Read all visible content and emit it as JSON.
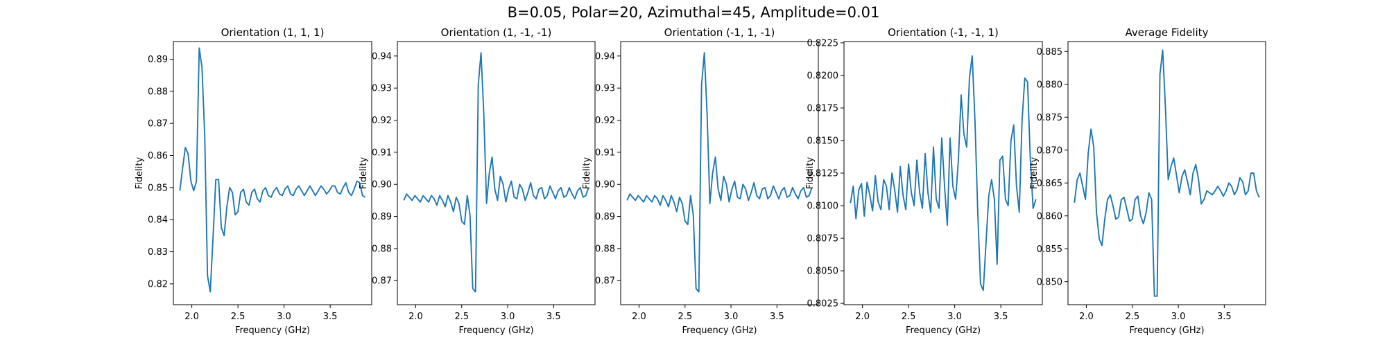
{
  "figure": {
    "suptitle": "B=0.05, Polar=20, Azimuthal=45, Amplitude=0.01"
  },
  "colors": {
    "line": "#1f77b4"
  },
  "chart_data": [
    {
      "type": "line",
      "title": "Orientation (1, 1, 1)",
      "xlabel": "Frequency (GHz)",
      "ylabel": "Fidelity",
      "xlim": [
        1.8,
        3.95
      ],
      "ylim": [
        0.8135,
        0.8955
      ],
      "xticks": [
        2.0,
        2.5,
        3.0,
        3.5
      ],
      "xtick_labels": [
        "2.0",
        "2.5",
        "3.0",
        "3.5"
      ],
      "yticks": [
        0.82,
        0.83,
        0.84,
        0.85,
        0.86,
        0.87,
        0.88,
        0.89
      ],
      "ytick_labels": [
        "0.82",
        "0.83",
        "0.84",
        "0.85",
        "0.86",
        "0.87",
        "0.88",
        "0.89"
      ],
      "x": [
        1.87,
        1.9,
        1.93,
        1.96,
        1.99,
        2.02,
        2.05,
        2.08,
        2.11,
        2.14,
        2.17,
        2.2,
        2.23,
        2.26,
        2.29,
        2.32,
        2.35,
        2.38,
        2.41,
        2.44,
        2.47,
        2.5,
        2.53,
        2.56,
        2.59,
        2.62,
        2.65,
        2.68,
        2.71,
        2.74,
        2.77,
        2.8,
        2.83,
        2.86,
        2.89,
        2.92,
        2.95,
        2.98,
        3.01,
        3.04,
        3.07,
        3.1,
        3.13,
        3.16,
        3.19,
        3.22,
        3.25,
        3.28,
        3.31,
        3.34,
        3.37,
        3.4,
        3.43,
        3.46,
        3.49,
        3.52,
        3.55,
        3.58,
        3.61,
        3.64,
        3.67,
        3.7,
        3.73,
        3.76,
        3.79,
        3.82,
        3.85,
        3.88
      ],
      "y": [
        0.849,
        0.856,
        0.8625,
        0.8605,
        0.852,
        0.849,
        0.852,
        0.8935,
        0.8875,
        0.866,
        0.8225,
        0.8175,
        0.8345,
        0.8525,
        0.8525,
        0.8375,
        0.835,
        0.844,
        0.85,
        0.8485,
        0.8415,
        0.8425,
        0.8485,
        0.8495,
        0.8455,
        0.8445,
        0.8485,
        0.8495,
        0.8465,
        0.8455,
        0.849,
        0.85,
        0.8475,
        0.847,
        0.849,
        0.85,
        0.848,
        0.8475,
        0.8495,
        0.8505,
        0.848,
        0.8475,
        0.8495,
        0.8505,
        0.849,
        0.8475,
        0.849,
        0.8505,
        0.849,
        0.8475,
        0.849,
        0.8505,
        0.8495,
        0.848,
        0.849,
        0.8505,
        0.8505,
        0.8485,
        0.848,
        0.85,
        0.8515,
        0.8485,
        0.8475,
        0.8495,
        0.852,
        0.8515,
        0.8475,
        0.847
      ]
    },
    {
      "type": "line",
      "title": "Orientation (1, -1, -1)",
      "xlabel": "Frequency (GHz)",
      "ylabel": "Fidelity",
      "xlim": [
        1.8,
        3.95
      ],
      "ylim": [
        0.8625,
        0.9445
      ],
      "xticks": [
        2.0,
        2.5,
        3.0,
        3.5
      ],
      "xtick_labels": [
        "2.0",
        "2.5",
        "3.0",
        "3.5"
      ],
      "yticks": [
        0.87,
        0.88,
        0.89,
        0.9,
        0.91,
        0.92,
        0.93,
        0.94
      ],
      "ytick_labels": [
        "0.87",
        "0.88",
        "0.89",
        "0.90",
        "0.91",
        "0.92",
        "0.93",
        "0.94"
      ],
      "x": [
        1.87,
        1.9,
        1.93,
        1.96,
        1.99,
        2.02,
        2.05,
        2.08,
        2.11,
        2.14,
        2.17,
        2.2,
        2.23,
        2.26,
        2.29,
        2.32,
        2.35,
        2.38,
        2.41,
        2.44,
        2.47,
        2.5,
        2.53,
        2.56,
        2.59,
        2.62,
        2.65,
        2.68,
        2.71,
        2.74,
        2.77,
        2.8,
        2.83,
        2.86,
        2.89,
        2.92,
        2.95,
        2.98,
        3.01,
        3.04,
        3.07,
        3.1,
        3.13,
        3.16,
        3.19,
        3.22,
        3.25,
        3.28,
        3.31,
        3.34,
        3.37,
        3.4,
        3.43,
        3.46,
        3.49,
        3.52,
        3.55,
        3.58,
        3.61,
        3.64,
        3.67,
        3.7,
        3.73,
        3.76,
        3.79,
        3.82,
        3.85,
        3.88
      ],
      "y": [
        0.895,
        0.897,
        0.896,
        0.895,
        0.8965,
        0.8955,
        0.8945,
        0.8965,
        0.8955,
        0.8945,
        0.8965,
        0.8955,
        0.8935,
        0.8965,
        0.895,
        0.893,
        0.8965,
        0.8945,
        0.8915,
        0.896,
        0.894,
        0.8885,
        0.8875,
        0.8965,
        0.8905,
        0.8675,
        0.8665,
        0.931,
        0.941,
        0.922,
        0.894,
        0.9035,
        0.9085,
        0.8985,
        0.895,
        0.9025,
        0.9,
        0.8945,
        0.8985,
        0.901,
        0.896,
        0.8955,
        0.9,
        0.8985,
        0.895,
        0.8975,
        0.9005,
        0.8965,
        0.8955,
        0.8985,
        0.899,
        0.8955,
        0.8965,
        0.8995,
        0.8975,
        0.8955,
        0.898,
        0.899,
        0.896,
        0.8965,
        0.899,
        0.897,
        0.8955,
        0.898,
        0.899,
        0.896,
        0.8965,
        0.899
      ]
    },
    {
      "type": "line",
      "title": "Orientation (-1, 1, -1)",
      "xlabel": "Frequency (GHz)",
      "ylabel": "Fidelity",
      "xlim": [
        1.8,
        3.95
      ],
      "ylim": [
        0.8625,
        0.9445
      ],
      "xticks": [
        2.0,
        2.5,
        3.0,
        3.5
      ],
      "xtick_labels": [
        "2.0",
        "2.5",
        "3.0",
        "3.5"
      ],
      "yticks": [
        0.87,
        0.88,
        0.89,
        0.9,
        0.91,
        0.92,
        0.93,
        0.94
      ],
      "ytick_labels": [
        "0.87",
        "0.88",
        "0.89",
        "0.90",
        "0.91",
        "0.92",
        "0.93",
        "0.94"
      ],
      "x": [
        1.87,
        1.9,
        1.93,
        1.96,
        1.99,
        2.02,
        2.05,
        2.08,
        2.11,
        2.14,
        2.17,
        2.2,
        2.23,
        2.26,
        2.29,
        2.32,
        2.35,
        2.38,
        2.41,
        2.44,
        2.47,
        2.5,
        2.53,
        2.56,
        2.59,
        2.62,
        2.65,
        2.68,
        2.71,
        2.74,
        2.77,
        2.8,
        2.83,
        2.86,
        2.89,
        2.92,
        2.95,
        2.98,
        3.01,
        3.04,
        3.07,
        3.1,
        3.13,
        3.16,
        3.19,
        3.22,
        3.25,
        3.28,
        3.31,
        3.34,
        3.37,
        3.4,
        3.43,
        3.46,
        3.49,
        3.52,
        3.55,
        3.58,
        3.61,
        3.64,
        3.67,
        3.7,
        3.73,
        3.76,
        3.79,
        3.82,
        3.85,
        3.88
      ],
      "y": [
        0.895,
        0.897,
        0.896,
        0.895,
        0.8965,
        0.8955,
        0.8945,
        0.8965,
        0.8955,
        0.8945,
        0.8965,
        0.8955,
        0.8935,
        0.8965,
        0.895,
        0.893,
        0.8965,
        0.8945,
        0.8915,
        0.896,
        0.894,
        0.8885,
        0.8875,
        0.8965,
        0.8905,
        0.8675,
        0.8665,
        0.931,
        0.941,
        0.922,
        0.894,
        0.9035,
        0.9085,
        0.8985,
        0.895,
        0.9025,
        0.9,
        0.8945,
        0.8985,
        0.901,
        0.896,
        0.8955,
        0.9,
        0.8985,
        0.895,
        0.8975,
        0.9005,
        0.8965,
        0.8955,
        0.8985,
        0.899,
        0.8955,
        0.8965,
        0.8995,
        0.8975,
        0.8955,
        0.898,
        0.899,
        0.896,
        0.8965,
        0.899,
        0.897,
        0.8955,
        0.898,
        0.899,
        0.896,
        0.8965,
        0.899
      ]
    },
    {
      "type": "line",
      "title": "Orientation (-1, -1, 1)",
      "xlabel": "Frequency (GHz)",
      "ylabel": "Fidelity",
      "xlim": [
        1.8,
        3.95
      ],
      "ylim": [
        0.8024,
        0.8226
      ],
      "xticks": [
        2.0,
        2.5,
        3.0,
        3.5
      ],
      "xtick_labels": [
        "2.0",
        "2.5",
        "3.0",
        "3.5"
      ],
      "yticks": [
        0.8025,
        0.805,
        0.8075,
        0.81,
        0.8125,
        0.815,
        0.8175,
        0.82,
        0.8225
      ],
      "ytick_labels": [
        "0.8025",
        "0.8050",
        "0.8075",
        "0.8100",
        "0.8125",
        "0.8150",
        "0.8175",
        "0.8200",
        "0.8225"
      ],
      "x": [
        1.87,
        1.9,
        1.93,
        1.96,
        1.99,
        2.02,
        2.05,
        2.08,
        2.11,
        2.14,
        2.17,
        2.2,
        2.23,
        2.26,
        2.29,
        2.32,
        2.35,
        2.38,
        2.41,
        2.44,
        2.47,
        2.5,
        2.53,
        2.56,
        2.59,
        2.62,
        2.65,
        2.68,
        2.71,
        2.74,
        2.77,
        2.8,
        2.83,
        2.86,
        2.89,
        2.92,
        2.95,
        2.98,
        3.01,
        3.04,
        3.07,
        3.1,
        3.13,
        3.16,
        3.19,
        3.22,
        3.25,
        3.28,
        3.31,
        3.34,
        3.37,
        3.4,
        3.43,
        3.46,
        3.49,
        3.52,
        3.55,
        3.58,
        3.61,
        3.64,
        3.67,
        3.7,
        3.73,
        3.76,
        3.79,
        3.82,
        3.85,
        3.88
      ],
      "y": [
        0.8102,
        0.8115,
        0.809,
        0.8112,
        0.8117,
        0.8092,
        0.8118,
        0.8108,
        0.8096,
        0.8123,
        0.8103,
        0.8097,
        0.812,
        0.8115,
        0.8097,
        0.8125,
        0.8112,
        0.8095,
        0.813,
        0.8108,
        0.8097,
        0.8132,
        0.811,
        0.81,
        0.8135,
        0.811,
        0.8098,
        0.814,
        0.811,
        0.8095,
        0.8145,
        0.8105,
        0.8098,
        0.8152,
        0.8115,
        0.8085,
        0.8152,
        0.8115,
        0.8105,
        0.8135,
        0.8185,
        0.8155,
        0.8145,
        0.8198,
        0.8215,
        0.8165,
        0.8095,
        0.804,
        0.8035,
        0.8072,
        0.8108,
        0.812,
        0.8105,
        0.8055,
        0.8135,
        0.8138,
        0.8105,
        0.81,
        0.815,
        0.8162,
        0.8115,
        0.8095,
        0.8165,
        0.8198,
        0.8195,
        0.8135,
        0.8098,
        0.8105
      ]
    },
    {
      "type": "line",
      "title": "Average Fidelity",
      "xlabel": "Frequency (GHz)",
      "ylabel": "Fidelity",
      "xlim": [
        1.8,
        3.95
      ],
      "ylim": [
        0.8465,
        0.8865
      ],
      "xticks": [
        2.0,
        2.5,
        3.0,
        3.5
      ],
      "xtick_labels": [
        "2.0",
        "2.5",
        "3.0",
        "3.5"
      ],
      "yticks": [
        0.85,
        0.855,
        0.86,
        0.865,
        0.87,
        0.875,
        0.88,
        0.885
      ],
      "ytick_labels": [
        "0.850",
        "0.855",
        "0.860",
        "0.865",
        "0.870",
        "0.875",
        "0.880",
        "0.885"
      ],
      "x": [
        1.87,
        1.9,
        1.93,
        1.96,
        1.99,
        2.02,
        2.05,
        2.08,
        2.11,
        2.14,
        2.17,
        2.2,
        2.23,
        2.26,
        2.29,
        2.32,
        2.35,
        2.38,
        2.41,
        2.44,
        2.47,
        2.5,
        2.53,
        2.56,
        2.59,
        2.62,
        2.65,
        2.68,
        2.71,
        2.74,
        2.77,
        2.8,
        2.83,
        2.86,
        2.89,
        2.92,
        2.95,
        2.98,
        3.01,
        3.04,
        3.07,
        3.1,
        3.13,
        3.16,
        3.19,
        3.22,
        3.25,
        3.28,
        3.31,
        3.34,
        3.37,
        3.4,
        3.43,
        3.46,
        3.49,
        3.52,
        3.55,
        3.58,
        3.61,
        3.64,
        3.67,
        3.7,
        3.73,
        3.76,
        3.79,
        3.82,
        3.85,
        3.88
      ],
      "y": [
        0.862,
        0.8655,
        0.8665,
        0.8645,
        0.8625,
        0.8695,
        0.8732,
        0.8705,
        0.8605,
        0.8565,
        0.8555,
        0.8595,
        0.8625,
        0.8632,
        0.8615,
        0.8595,
        0.8598,
        0.8625,
        0.8628,
        0.861,
        0.8592,
        0.8595,
        0.8625,
        0.863,
        0.86,
        0.8588,
        0.8605,
        0.8635,
        0.8625,
        0.8478,
        0.8478,
        0.8815,
        0.8852,
        0.8765,
        0.8655,
        0.8675,
        0.8688,
        0.8662,
        0.8635,
        0.866,
        0.867,
        0.8652,
        0.8632,
        0.8665,
        0.8678,
        0.8655,
        0.8618,
        0.8625,
        0.8638,
        0.8635,
        0.8632,
        0.8638,
        0.8645,
        0.8638,
        0.863,
        0.8638,
        0.865,
        0.8645,
        0.8632,
        0.864,
        0.8658,
        0.8652,
        0.8632,
        0.8638,
        0.8665,
        0.8665,
        0.8638,
        0.8628
      ]
    }
  ]
}
